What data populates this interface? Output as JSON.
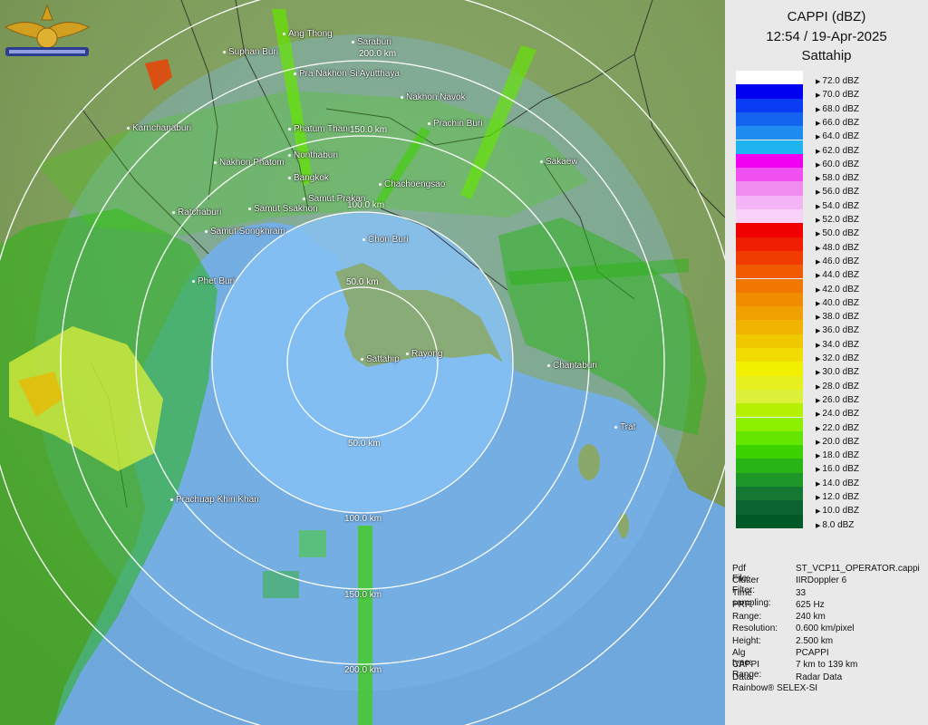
{
  "header": {
    "product": "CAPPI (dBZ)",
    "datetime": "12:54 / 19-Apr-2025",
    "station": "Sattahip"
  },
  "legend": [
    {
      "label": "72.0 dBZ",
      "color": "#ffffff"
    },
    {
      "label": "70.0 dBZ",
      "color": "#0000f0"
    },
    {
      "label": "68.0 dBZ",
      "color": "#0a3cf5"
    },
    {
      "label": "66.0 dBZ",
      "color": "#1464f0"
    },
    {
      "label": "64.0 dBZ",
      "color": "#1e8cf0"
    },
    {
      "label": "62.0 dBZ",
      "color": "#1eb4f0"
    },
    {
      "label": "60.0 dBZ",
      "color": "#f000f0"
    },
    {
      "label": "58.0 dBZ",
      "color": "#f050f0"
    },
    {
      "label": "56.0 dBZ",
      "color": "#f08cf0"
    },
    {
      "label": "54.0 dBZ",
      "color": "#f5b4f5"
    },
    {
      "label": "52.0 dBZ",
      "color": "#f8d2f8"
    },
    {
      "label": "50.0 dBZ",
      "color": "#f00000"
    },
    {
      "label": "48.0 dBZ",
      "color": "#f01e00"
    },
    {
      "label": "46.0 dBZ",
      "color": "#f03c00"
    },
    {
      "label": "44.0 dBZ",
      "color": "#f05a00"
    },
    {
      "label": "42.0 dBZ",
      "color": "#f07800"
    },
    {
      "label": "40.0 dBZ",
      "color": "#f08c00"
    },
    {
      "label": "38.0 dBZ",
      "color": "#f0a000"
    },
    {
      "label": "36.0 dBZ",
      "color": "#f0b400"
    },
    {
      "label": "34.0 dBZ",
      "color": "#f0c800"
    },
    {
      "label": "32.0 dBZ",
      "color": "#f0dc00"
    },
    {
      "label": "30.0 dBZ",
      "color": "#f0f000"
    },
    {
      "label": "28.0 dBZ",
      "color": "#e6f01e"
    },
    {
      "label": "26.0 dBZ",
      "color": "#dcf03c"
    },
    {
      "label": "24.0 dBZ",
      "color": "#b4f000"
    },
    {
      "label": "22.0 dBZ",
      "color": "#8cf000"
    },
    {
      "label": "20.0 dBZ",
      "color": "#64e600"
    },
    {
      "label": "18.0 dBZ",
      "color": "#3cd200"
    },
    {
      "label": "16.0 dBZ",
      "color": "#28b414"
    },
    {
      "label": "14.0 dBZ",
      "color": "#1e9628"
    },
    {
      "label": "12.0 dBZ",
      "color": "#147832"
    },
    {
      "label": "10.0 dBZ",
      "color": "#0a6432"
    },
    {
      "label": "8.0 dBZ",
      "color": "#005a28"
    }
  ],
  "info": [
    {
      "key": "Pdf File:",
      "value": "ST_VCP11_OPERATOR.cappi"
    },
    {
      "key": "Clutter Filter:",
      "value": "IIRDoppler 6"
    },
    {
      "key": "Time sampling:",
      "value": "33"
    },
    {
      "key": "PRF:",
      "value": "625 Hz"
    },
    {
      "key": "Range:",
      "value": "240 km"
    },
    {
      "key": "Resolution:",
      "value": "0.600 km/pixel"
    },
    {
      "key": "Height:",
      "value": "2.500 km"
    },
    {
      "key": "Alg type:",
      "value": "PCAPPI"
    },
    {
      "key": "CAPPI Range:",
      "value": "7 km to 139 km"
    },
    {
      "key": "Data:",
      "value": "Radar Data"
    }
  ],
  "footer": "Rainbow® SELEX-SI",
  "rings": [
    "50.0 km",
    "100.0 km",
    "150.0 km",
    "200.0 km"
  ],
  "cities": [
    "Ang Thong",
    "Suphan Buri",
    "Saraburi",
    "Pra Nakhon Si Ayutthaya",
    "Nakhon Navok",
    "Karnchanaburi",
    "Phatum Thani",
    "Prachin Buri",
    "Nakhon Phatom",
    "Nonthaburi",
    "Sakaew",
    "Bangkok",
    "Chachoengsao",
    "Samut Prakan",
    "Ratchaburi",
    "Samut Ssakhon",
    "Samut Songkhram",
    "Chon Buri",
    "Phet Buri",
    "Sattahip",
    "Rayong",
    "Chantaburi",
    "Trat",
    "Prachuap Khiri Khan"
  ]
}
